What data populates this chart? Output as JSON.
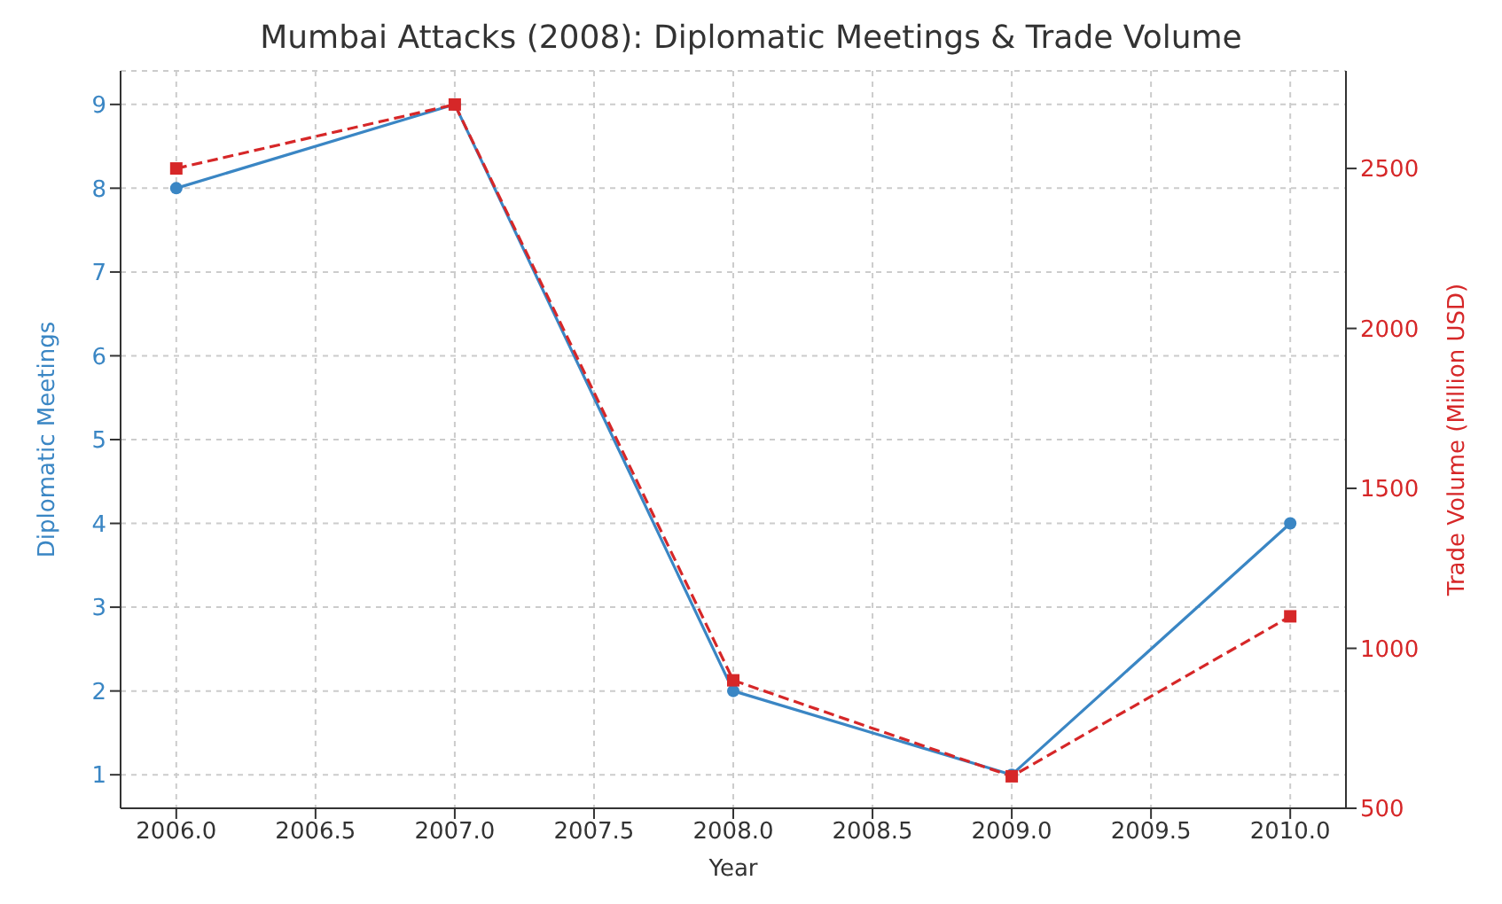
{
  "chart_data": {
    "type": "line",
    "title": "Mumbai Attacks (2008): Diplomatic Meetings & Trade Volume",
    "xlabel": "Year",
    "ylabel": "Diplomatic Meetings",
    "y2label": "Trade Volume (Million USD)",
    "x": [
      2006,
      2007,
      2008,
      2009,
      2010
    ],
    "series": [
      {
        "name": null,
        "color": "#3a86c4",
        "values": [
          8,
          9,
          2,
          1,
          4
        ],
        "marker": "circle",
        "line_style": "solid"
      },
      {
        "name": null,
        "color": "#d62728",
        "values": [
          2500,
          2700,
          900,
          600,
          1100
        ],
        "axis": "y2",
        "marker": "square",
        "line_style": "dashed"
      }
    ],
    "xlim": [
      2005.8,
      2010.2
    ],
    "xticks": [
      {
        "value": 2006,
        "label": "2006.0"
      },
      {
        "value": 2006.5,
        "label": "2006.5"
      },
      {
        "value": 2007,
        "label": "2007.0"
      },
      {
        "value": 2007.5,
        "label": "2007.5"
      },
      {
        "value": 2008,
        "label": "2008.0"
      },
      {
        "value": 2008.5,
        "label": "2008.5"
      },
      {
        "value": 2009,
        "label": "2009.0"
      },
      {
        "value": 2009.5,
        "label": "2009.5"
      },
      {
        "value": 2010,
        "label": "2010.0"
      }
    ],
    "ylim": [
      0.6,
      9.4
    ],
    "yticks": [
      1,
      2,
      3,
      4,
      5,
      6,
      7,
      8,
      9
    ],
    "y2lim": [
      500,
      2805
    ],
    "y2ticks": [
      500,
      1000,
      1500,
      2000,
      2500
    ],
    "grid": true
  }
}
